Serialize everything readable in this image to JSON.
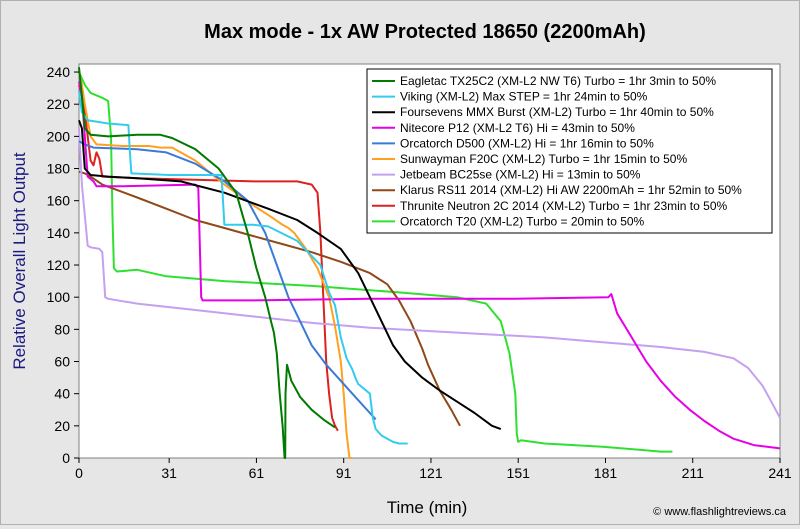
{
  "chart_data": {
    "type": "line",
    "title": "Max mode - 1x AW Protected 18650 (2200mAh)",
    "xlabel": "Time (min)",
    "ylabel": "Relative Overall Light Output",
    "xlim": [
      0,
      241
    ],
    "ylim": [
      0,
      245
    ],
    "x_ticks": [
      0,
      31,
      61,
      91,
      121,
      151,
      181,
      211,
      241
    ],
    "y_ticks": [
      0,
      20,
      40,
      60,
      80,
      100,
      120,
      140,
      160,
      180,
      200,
      220,
      240
    ],
    "grid": false,
    "legend_position": "top-right",
    "credit": "© www.flashlightreviews.ca",
    "series": [
      {
        "name": "Eagletac TX25C2 (XM-L2 NW T6) Turbo = 1hr 3min to 50%",
        "color": "#007a00",
        "points": [
          [
            0,
            243
          ],
          [
            1,
            225
          ],
          [
            2,
            205
          ],
          [
            4,
            201
          ],
          [
            10,
            200
          ],
          [
            20,
            201
          ],
          [
            28,
            201
          ],
          [
            32,
            199
          ],
          [
            40,
            192
          ],
          [
            48,
            180
          ],
          [
            54,
            165
          ],
          [
            58,
            140
          ],
          [
            61,
            118
          ],
          [
            64,
            100
          ],
          [
            66,
            85
          ],
          [
            67,
            78
          ],
          [
            68,
            65
          ],
          [
            69,
            40
          ],
          [
            70,
            20
          ],
          [
            70.5,
            5
          ],
          [
            70.7,
            0
          ],
          [
            70.9,
            0
          ],
          [
            71,
            40
          ],
          [
            71.5,
            58
          ],
          [
            73,
            48
          ],
          [
            76,
            38
          ],
          [
            80,
            30
          ],
          [
            84,
            24
          ],
          [
            88,
            19
          ]
        ]
      },
      {
        "name": "Viking (XM-L2) Max STEP = 1hr 24min to 50%",
        "color": "#33ccee",
        "points": [
          [
            0,
            228
          ],
          [
            1,
            215
          ],
          [
            3,
            210
          ],
          [
            10,
            208
          ],
          [
            17,
            207
          ],
          [
            17.5,
            190
          ],
          [
            18,
            177
          ],
          [
            31,
            176
          ],
          [
            49,
            176
          ],
          [
            50,
            145
          ],
          [
            55,
            145
          ],
          [
            60,
            145
          ],
          [
            65,
            144
          ],
          [
            75,
            135
          ],
          [
            83,
            120
          ],
          [
            86,
            103
          ],
          [
            88,
            95
          ],
          [
            90,
            75
          ],
          [
            92,
            62
          ],
          [
            94,
            55
          ],
          [
            95,
            50
          ],
          [
            96,
            46
          ],
          [
            98,
            43
          ],
          [
            100,
            40
          ],
          [
            101,
            25
          ],
          [
            102,
            18
          ],
          [
            104,
            14
          ],
          [
            106,
            12
          ],
          [
            108,
            10
          ],
          [
            110,
            9
          ],
          [
            113,
            9
          ]
        ]
      },
      {
        "name": "Foursevens MMX Burst (XM-L2) Turbo = 1hr 40min to 50%",
        "color": "#000000",
        "points": [
          [
            0,
            210
          ],
          [
            1,
            205
          ],
          [
            2,
            180
          ],
          [
            4,
            176
          ],
          [
            10,
            175
          ],
          [
            20,
            174
          ],
          [
            35,
            172
          ],
          [
            50,
            165
          ],
          [
            65,
            155
          ],
          [
            75,
            148
          ],
          [
            82,
            140
          ],
          [
            90,
            130
          ],
          [
            96,
            115
          ],
          [
            100,
            100
          ],
          [
            104,
            85
          ],
          [
            108,
            70
          ],
          [
            112,
            60
          ],
          [
            118,
            50
          ],
          [
            124,
            42
          ],
          [
            130,
            35
          ],
          [
            136,
            28
          ],
          [
            142,
            20
          ],
          [
            145,
            18
          ]
        ]
      },
      {
        "name": "Nitecore P12 (XM-L2 T6) Hi = 43min to 50%",
        "color": "#e600e6",
        "points": [
          [
            0,
            234
          ],
          [
            1,
            225
          ],
          [
            2,
            200
          ],
          [
            3,
            175
          ],
          [
            5,
            172
          ],
          [
            6,
            169
          ],
          [
            15,
            169
          ],
          [
            40,
            170
          ],
          [
            41,
            168
          ],
          [
            42,
            100
          ],
          [
            42.5,
            98
          ],
          [
            60,
            98
          ],
          [
            100,
            99
          ],
          [
            150,
            99
          ],
          [
            182,
            100
          ],
          [
            183,
            102
          ],
          [
            185,
            90
          ],
          [
            190,
            75
          ],
          [
            195,
            60
          ],
          [
            200,
            48
          ],
          [
            205,
            38
          ],
          [
            210,
            30
          ],
          [
            215,
            23
          ],
          [
            220,
            17
          ],
          [
            225,
            12
          ],
          [
            232,
            8
          ],
          [
            241,
            6
          ]
        ]
      },
      {
        "name": "Orcatorch D500 (XM-L2) Hi = 1hr 16min to 50%",
        "color": "#3a7ad8",
        "points": [
          [
            0,
            197
          ],
          [
            2,
            195
          ],
          [
            5,
            193
          ],
          [
            20,
            192
          ],
          [
            30,
            190
          ],
          [
            40,
            183
          ],
          [
            50,
            172
          ],
          [
            58,
            160
          ],
          [
            64,
            140
          ],
          [
            68,
            120
          ],
          [
            72,
            100
          ],
          [
            76,
            85
          ],
          [
            80,
            70
          ],
          [
            85,
            58
          ],
          [
            90,
            48
          ],
          [
            95,
            38
          ],
          [
            100,
            28
          ],
          [
            102,
            24
          ]
        ]
      },
      {
        "name": "Sunwayman F20C (XM-L2) Turbo = 1hr 15min to 50%",
        "color": "#ffa020",
        "points": [
          [
            0,
            240
          ],
          [
            1,
            232
          ],
          [
            2,
            220
          ],
          [
            4,
            200
          ],
          [
            6,
            195
          ],
          [
            15,
            194
          ],
          [
            24,
            194
          ],
          [
            28,
            193
          ],
          [
            32,
            193
          ],
          [
            40,
            185
          ],
          [
            50,
            170
          ],
          [
            60,
            157
          ],
          [
            66,
            150
          ],
          [
            70,
            145
          ],
          [
            72,
            143
          ],
          [
            74,
            140
          ],
          [
            78,
            130
          ],
          [
            82,
            118
          ],
          [
            86,
            100
          ],
          [
            88,
            82
          ],
          [
            90,
            60
          ],
          [
            91,
            40
          ],
          [
            92,
            15
          ],
          [
            93,
            0
          ],
          [
            94,
            0
          ]
        ]
      },
      {
        "name": "Jetbeam BC25se (XM-L2) Hi = 13min to 50%",
        "color": "#c4a0f0",
        "points": [
          [
            0,
            205
          ],
          [
            1,
            170
          ],
          [
            3,
            132
          ],
          [
            4,
            131
          ],
          [
            7,
            130
          ],
          [
            8,
            128
          ],
          [
            9,
            100
          ],
          [
            10,
            99
          ],
          [
            20,
            96
          ],
          [
            40,
            92
          ],
          [
            60,
            88
          ],
          [
            80,
            84
          ],
          [
            100,
            81
          ],
          [
            120,
            79
          ],
          [
            140,
            77
          ],
          [
            160,
            75
          ],
          [
            180,
            72
          ],
          [
            200,
            69
          ],
          [
            215,
            66
          ],
          [
            225,
            62
          ],
          [
            230,
            56
          ],
          [
            235,
            45
          ],
          [
            238,
            35
          ],
          [
            241,
            25
          ]
        ]
      },
      {
        "name": "Klarus RS11 2014 (XM-L2) Hi AW 2200mAh = 1hr 52min to 50%",
        "color": "#904818",
        "points": [
          [
            0,
            178
          ],
          [
            2,
            177
          ],
          [
            4,
            175
          ],
          [
            8,
            170
          ],
          [
            20,
            162
          ],
          [
            30,
            155
          ],
          [
            40,
            148
          ],
          [
            50,
            143
          ],
          [
            60,
            138
          ],
          [
            70,
            133
          ],
          [
            80,
            128
          ],
          [
            90,
            122
          ],
          [
            100,
            115
          ],
          [
            106,
            108
          ],
          [
            110,
            98
          ],
          [
            114,
            85
          ],
          [
            118,
            68
          ],
          [
            120,
            58
          ],
          [
            124,
            42
          ],
          [
            128,
            30
          ],
          [
            131,
            20
          ]
        ]
      },
      {
        "name": "Thrunite Neutron 2C 2014 (XM-L2) Turbo = 1hr 23min to 50%",
        "color": "#dd2020",
        "points": [
          [
            0,
            232
          ],
          [
            1,
            225
          ],
          [
            2,
            215
          ],
          [
            3,
            200
          ],
          [
            4,
            185
          ],
          [
            5,
            182
          ],
          [
            6,
            190
          ],
          [
            7,
            186
          ],
          [
            8,
            175
          ],
          [
            20,
            174
          ],
          [
            40,
            173
          ],
          [
            60,
            172
          ],
          [
            75,
            172
          ],
          [
            80,
            170
          ],
          [
            82,
            165
          ],
          [
            83,
            140
          ],
          [
            84,
            100
          ],
          [
            85,
            60
          ],
          [
            86,
            40
          ],
          [
            87,
            25
          ],
          [
            88,
            20
          ],
          [
            89,
            17
          ]
        ]
      },
      {
        "name": "Orcatorch T20 (XM-L2) Turbo = 20min to 50%",
        "color": "#30e030",
        "points": [
          [
            0,
            240
          ],
          [
            2,
            232
          ],
          [
            4,
            227
          ],
          [
            8,
            224
          ],
          [
            10,
            222
          ],
          [
            11,
            200
          ],
          [
            11.5,
            150
          ],
          [
            12,
            118
          ],
          [
            13,
            116
          ],
          [
            20,
            117
          ],
          [
            30,
            113
          ],
          [
            50,
            110
          ],
          [
            80,
            107
          ],
          [
            110,
            103
          ],
          [
            130,
            100
          ],
          [
            140,
            96
          ],
          [
            145,
            85
          ],
          [
            148,
            65
          ],
          [
            150,
            40
          ],
          [
            150.5,
            15
          ],
          [
            151,
            10
          ],
          [
            152,
            11
          ],
          [
            160,
            9
          ],
          [
            180,
            7
          ],
          [
            200,
            4
          ],
          [
            204,
            4
          ]
        ]
      }
    ]
  }
}
